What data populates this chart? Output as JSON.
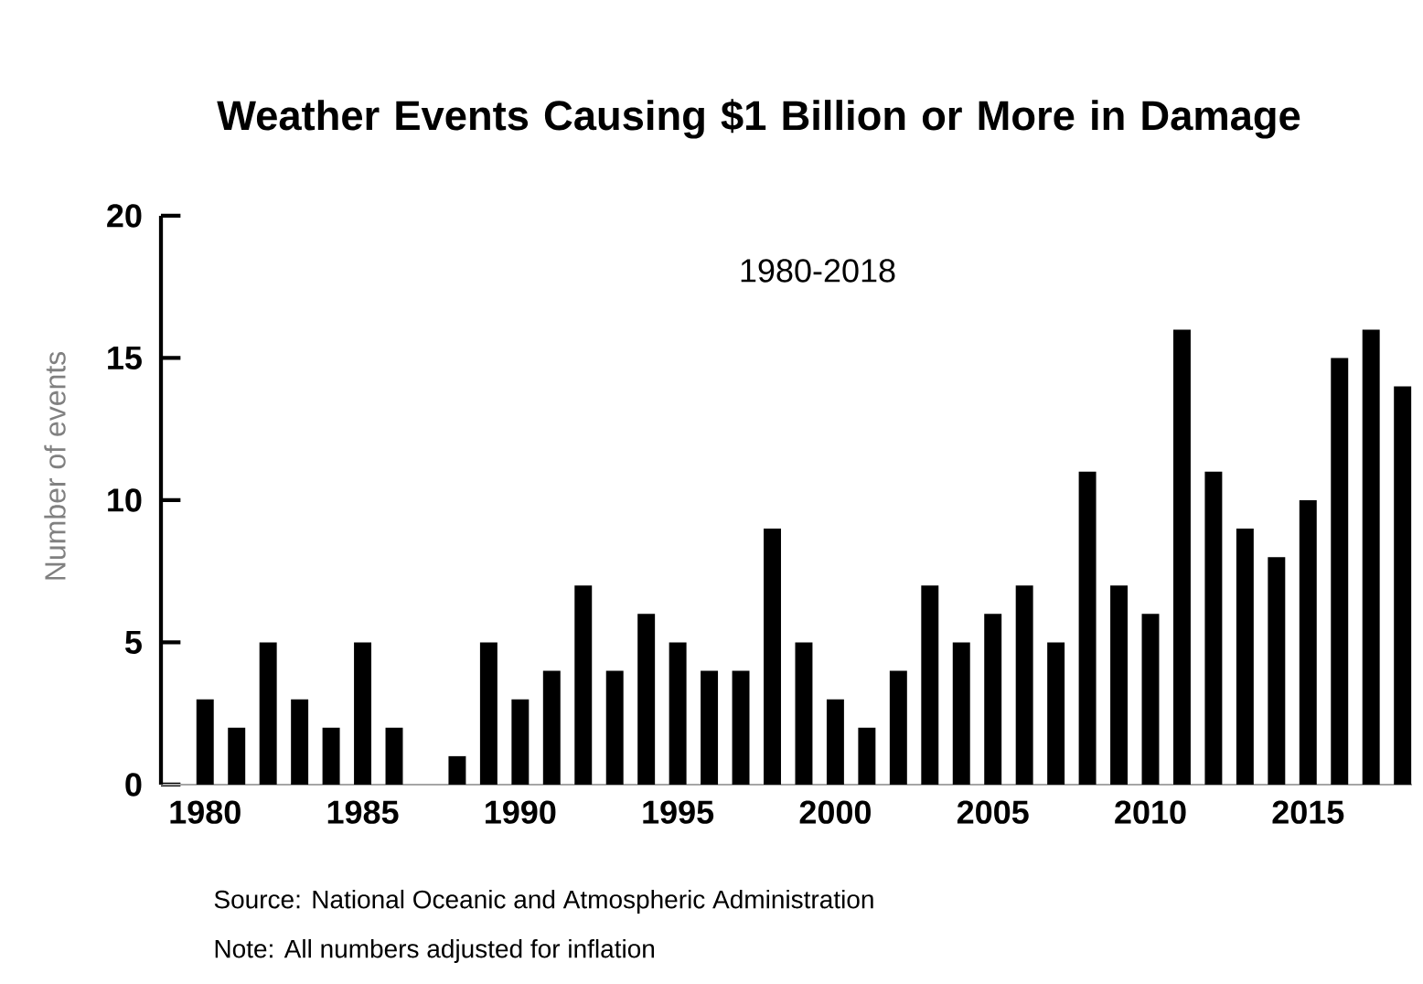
{
  "chart_data": {
    "type": "bar",
    "title": "Weather Events Causing $1 Billion or More in Damage",
    "subtitle": "1980-2018",
    "ylabel": "Number of events",
    "categories": [
      "1980",
      null,
      null,
      null,
      null,
      "1985",
      null,
      null,
      null,
      null,
      "1990",
      null,
      null,
      null,
      null,
      "1995",
      null,
      null,
      null,
      null,
      "2000",
      null,
      null,
      null,
      null,
      "2005",
      null,
      null,
      null,
      null,
      "2010",
      null,
      null,
      null,
      null,
      "2015",
      null,
      null,
      null
    ],
    "values": [
      3,
      2,
      5,
      3,
      2,
      5,
      2,
      0,
      1,
      5,
      3,
      4,
      7,
      4,
      6,
      5,
      4,
      4,
      9,
      5,
      3,
      2,
      4,
      7,
      5,
      6,
      7,
      5,
      11,
      7,
      6,
      16,
      11,
      9,
      8,
      10,
      15,
      16,
      14
    ],
    "color": "#000000",
    "ylim": [
      0,
      20
    ],
    "yticks": [
      0,
      5,
      10,
      15,
      20
    ],
    "grid": false,
    "annotations": [
      "Source: National Oceanic and Atmospheric Administration",
      "Note: All numbers adjusted for inflation"
    ]
  }
}
